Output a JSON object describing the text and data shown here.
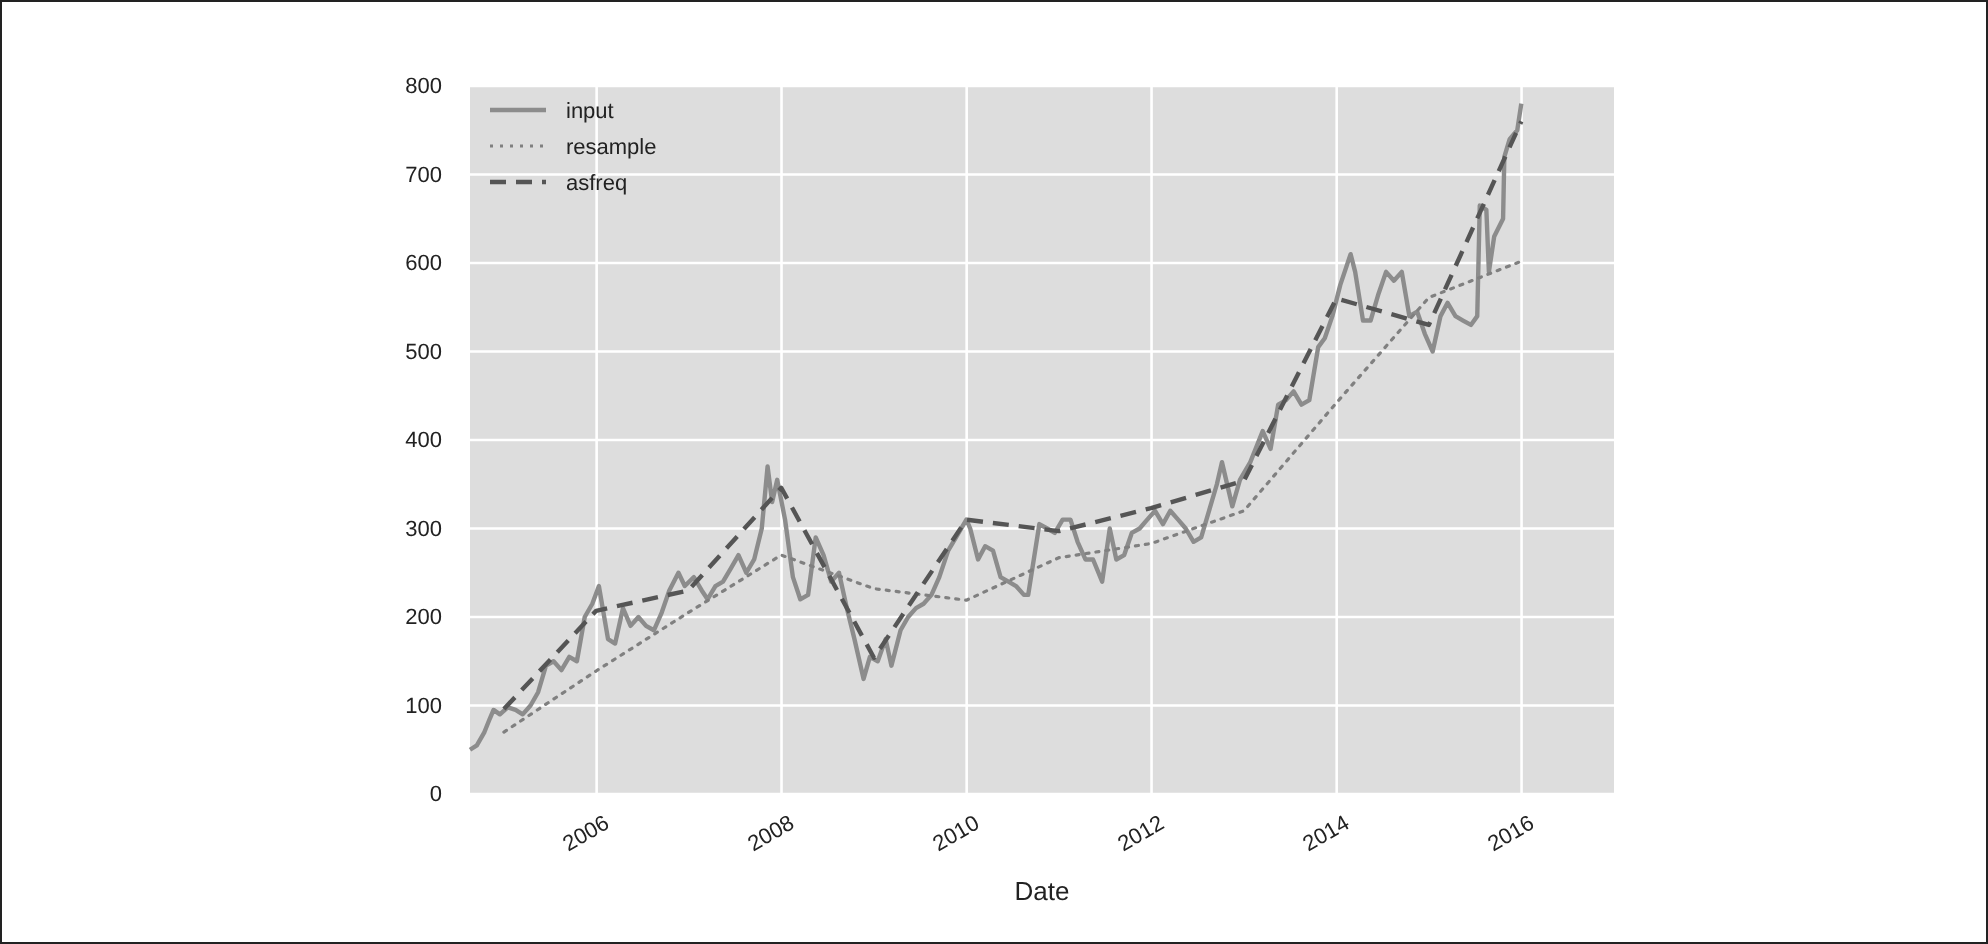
{
  "chart_data": {
    "type": "line",
    "xlabel": "Date",
    "legend": "top left",
    "grid": true,
    "xlim": [
      "2004-08-19",
      "2016-12-31"
    ],
    "xticks": [
      "2006",
      "2008",
      "2010",
      "2012",
      "2014",
      "2016"
    ],
    "ylim": [
      0,
      800
    ],
    "yticks": [
      0,
      100,
      200,
      300,
      400,
      500,
      600,
      700,
      800
    ],
    "series": [
      {
        "name": "input",
        "color": "#8c8c8c",
        "line_style": "solid",
        "x": [
          "2004-08-19",
          "2004-09-15",
          "2004-10-15",
          "2004-11-05",
          "2004-11-20",
          "2004-12-15",
          "2005-01-15",
          "2005-02-15",
          "2005-03-15",
          "2005-04-15",
          "2005-05-15",
          "2005-06-15",
          "2005-07-15",
          "2005-08-15",
          "2005-09-15",
          "2005-10-15",
          "2005-11-15",
          "2005-12-15",
          "2006-01-10",
          "2006-02-15",
          "2006-03-15",
          "2006-04-15",
          "2006-05-15",
          "2006-06-15",
          "2006-07-15",
          "2006-08-15",
          "2006-09-15",
          "2006-10-15",
          "2006-11-20",
          "2006-12-15",
          "2007-01-20",
          "2007-02-20",
          "2007-03-15",
          "2007-04-15",
          "2007-05-15",
          "2007-06-15",
          "2007-07-15",
          "2007-08-15",
          "2007-09-15",
          "2007-10-15",
          "2007-11-07",
          "2007-11-25",
          "2007-12-15",
          "2008-01-15",
          "2008-02-15",
          "2008-03-15",
          "2008-04-15",
          "2008-05-15",
          "2008-06-15",
          "2008-07-15",
          "2008-08-15",
          "2008-09-15",
          "2008-10-15",
          "2008-11-20",
          "2008-12-15",
          "2009-01-15",
          "2009-02-15",
          "2009-03-10",
          "2009-04-15",
          "2009-05-15",
          "2009-06-15",
          "2009-07-15",
          "2009-08-15",
          "2009-09-15",
          "2009-10-20",
          "2009-11-20",
          "2009-12-31",
          "2010-01-15",
          "2010-02-15",
          "2010-03-15",
          "2010-04-15",
          "2010-05-15",
          "2010-06-15",
          "2010-07-15",
          "2010-08-15",
          "2010-09-01",
          "2010-10-15",
          "2010-11-15",
          "2010-12-15",
          "2011-01-15",
          "2011-02-15",
          "2011-03-15",
          "2011-04-15",
          "2011-05-15",
          "2011-06-20",
          "2011-07-20",
          "2011-08-15",
          "2011-09-15",
          "2011-10-15",
          "2011-11-15",
          "2011-12-15",
          "2012-01-15",
          "2012-02-15",
          "2012-03-15",
          "2012-04-15",
          "2012-05-15",
          "2012-06-15",
          "2012-07-15",
          "2012-08-15",
          "2012-09-15",
          "2012-10-05",
          "2012-11-15",
          "2012-12-15",
          "2013-01-25",
          "2013-03-15",
          "2013-04-15",
          "2013-05-15",
          "2013-06-15",
          "2013-07-15",
          "2013-08-15",
          "2013-09-15",
          "2013-10-20",
          "2013-11-15",
          "2013-12-15",
          "2014-01-15",
          "2014-02-25",
          "2014-03-15",
          "2014-04-15",
          "2014-05-15",
          "2014-06-15",
          "2014-07-15",
          "2014-08-15",
          "2014-09-15",
          "2014-10-15",
          "2014-11-15",
          "2014-12-15",
          "2015-01-15",
          "2015-02-15",
          "2015-03-15",
          "2015-04-15",
          "2015-05-15",
          "2015-06-15",
          "2015-07-10",
          "2015-07-20",
          "2015-08-15",
          "2015-08-25",
          "2015-09-15",
          "2015-10-20",
          "2015-10-25",
          "2015-11-15",
          "2015-12-15",
          "2015-12-31"
        ],
        "values": [
          50,
          55,
          70,
          85,
          95,
          90,
          98,
          95,
          90,
          100,
          115,
          145,
          150,
          140,
          155,
          150,
          200,
          215,
          235,
          175,
          170,
          210,
          190,
          200,
          190,
          185,
          205,
          230,
          250,
          235,
          245,
          230,
          220,
          235,
          240,
          255,
          270,
          250,
          265,
          300,
          370,
          330,
          355,
          310,
          245,
          220,
          225,
          290,
          270,
          240,
          250,
          210,
          175,
          130,
          155,
          150,
          175,
          145,
          185,
          200,
          210,
          215,
          225,
          245,
          275,
          290,
          310,
          300,
          265,
          280,
          275,
          245,
          240,
          235,
          225,
          225,
          305,
          300,
          295,
          310,
          310,
          285,
          265,
          265,
          240,
          300,
          265,
          270,
          295,
          300,
          310,
          320,
          305,
          320,
          310,
          300,
          285,
          290,
          320,
          350,
          375,
          325,
          355,
          375,
          410,
          390,
          440,
          445,
          455,
          440,
          445,
          505,
          515,
          540,
          575,
          610,
          590,
          535,
          535,
          565,
          590,
          580,
          590,
          540,
          545,
          520,
          500,
          540,
          555,
          540,
          535,
          530,
          540,
          665,
          660,
          590,
          630,
          650,
          720,
          740,
          750,
          780
        ]
      },
      {
        "name": "resample",
        "color": "#808080",
        "line_style": "dotted",
        "x": [
          "2004-12-31",
          "2005-12-30",
          "2006-12-29",
          "2007-12-31",
          "2008-12-31",
          "2009-12-31",
          "2010-12-31",
          "2011-12-30",
          "2012-12-31",
          "2013-12-31",
          "2014-12-31",
          "2015-12-31"
        ],
        "values": [
          70,
          139,
          205,
          270,
          232,
          219,
          267,
          283,
          320,
          442,
          561,
          602
        ]
      },
      {
        "name": "asfreq",
        "color": "#555555",
        "line_style": "dashed",
        "x": [
          "2004-12-31",
          "2005-12-30",
          "2006-12-29",
          "2007-12-31",
          "2008-12-31",
          "2009-12-31",
          "2010-12-31",
          "2011-12-30",
          "2012-12-31",
          "2013-12-31",
          "2014-12-31",
          "2015-12-31"
        ],
        "values": [
          96,
          207,
          230,
          346,
          154,
          310,
          297,
          323,
          354,
          560,
          530,
          760
        ]
      }
    ]
  }
}
